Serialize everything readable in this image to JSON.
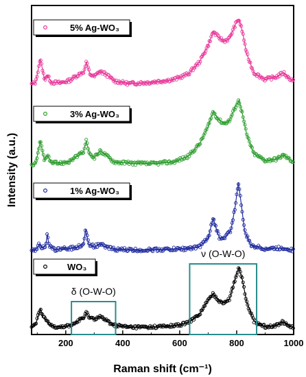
{
  "chart_data": {
    "type": "line",
    "xlabel": "Raman shift (cm⁻¹)",
    "ylabel": "Intensity (a.u.)",
    "xlim": [
      80,
      1000
    ],
    "xticks": [
      "200",
      "400",
      "600",
      "800",
      "1000"
    ],
    "grid": false,
    "legend_placement": "per-series box at top-left of each trace",
    "series": [
      {
        "name": "5% Ag-WO₃",
        "color": "#e8399a",
        "points": [
          [
            80,
            0.05
          ],
          [
            95,
            0.08
          ],
          [
            110,
            0.42
          ],
          [
            118,
            0.28
          ],
          [
            125,
            0.12
          ],
          [
            135,
            0.18
          ],
          [
            150,
            0.08
          ],
          [
            180,
            0.07
          ],
          [
            210,
            0.1
          ],
          [
            240,
            0.18
          ],
          [
            265,
            0.24
          ],
          [
            272,
            0.38
          ],
          [
            285,
            0.2
          ],
          [
            300,
            0.16
          ],
          [
            320,
            0.24
          ],
          [
            340,
            0.2
          ],
          [
            370,
            0.1
          ],
          [
            420,
            0.06
          ],
          [
            500,
            0.08
          ],
          [
            580,
            0.12
          ],
          [
            630,
            0.2
          ],
          [
            670,
            0.38
          ],
          [
            700,
            0.62
          ],
          [
            718,
            0.82
          ],
          [
            735,
            0.74
          ],
          [
            755,
            0.68
          ],
          [
            775,
            0.72
          ],
          [
            795,
            0.92
          ],
          [
            808,
            1.0
          ],
          [
            820,
            0.82
          ],
          [
            835,
            0.5
          ],
          [
            860,
            0.22
          ],
          [
            900,
            0.12
          ],
          [
            940,
            0.16
          ],
          [
            965,
            0.22
          ],
          [
            980,
            0.15
          ],
          [
            1000,
            0.1
          ]
        ]
      },
      {
        "name": "3% Ag-WO₃",
        "color": "#2e9e2e",
        "points": [
          [
            80,
            0.05
          ],
          [
            95,
            0.08
          ],
          [
            110,
            0.4
          ],
          [
            118,
            0.26
          ],
          [
            125,
            0.12
          ],
          [
            135,
            0.2
          ],
          [
            150,
            0.08
          ],
          [
            180,
            0.08
          ],
          [
            210,
            0.1
          ],
          [
            240,
            0.18
          ],
          [
            262,
            0.24
          ],
          [
            272,
            0.4
          ],
          [
            285,
            0.2
          ],
          [
            300,
            0.16
          ],
          [
            322,
            0.26
          ],
          [
            340,
            0.2
          ],
          [
            370,
            0.1
          ],
          [
            420,
            0.08
          ],
          [
            500,
            0.07
          ],
          [
            580,
            0.1
          ],
          [
            630,
            0.18
          ],
          [
            670,
            0.36
          ],
          [
            700,
            0.62
          ],
          [
            718,
            0.84
          ],
          [
            735,
            0.72
          ],
          [
            755,
            0.66
          ],
          [
            775,
            0.7
          ],
          [
            795,
            0.9
          ],
          [
            808,
            1.0
          ],
          [
            820,
            0.8
          ],
          [
            835,
            0.5
          ],
          [
            860,
            0.22
          ],
          [
            900,
            0.12
          ],
          [
            940,
            0.14
          ],
          [
            965,
            0.2
          ],
          [
            980,
            0.15
          ],
          [
            1000,
            0.1
          ]
        ]
      },
      {
        "name": "1% Ag-WO₃",
        "color": "#1f2a9e",
        "points": [
          [
            80,
            0.02
          ],
          [
            95,
            0.04
          ],
          [
            108,
            0.12
          ],
          [
            118,
            0.06
          ],
          [
            130,
            0.1
          ],
          [
            135,
            0.26
          ],
          [
            142,
            0.08
          ],
          [
            160,
            0.04
          ],
          [
            200,
            0.05
          ],
          [
            240,
            0.07
          ],
          [
            262,
            0.12
          ],
          [
            270,
            0.33
          ],
          [
            280,
            0.12
          ],
          [
            300,
            0.08
          ],
          [
            322,
            0.12
          ],
          [
            340,
            0.07
          ],
          [
            380,
            0.04
          ],
          [
            450,
            0.03
          ],
          [
            550,
            0.04
          ],
          [
            620,
            0.05
          ],
          [
            670,
            0.08
          ],
          [
            700,
            0.2
          ],
          [
            712,
            0.4
          ],
          [
            718,
            0.48
          ],
          [
            725,
            0.38
          ],
          [
            740,
            0.2
          ],
          [
            760,
            0.22
          ],
          [
            780,
            0.32
          ],
          [
            795,
            0.66
          ],
          [
            806,
            1.0
          ],
          [
            815,
            0.72
          ],
          [
            828,
            0.3
          ],
          [
            850,
            0.1
          ],
          [
            900,
            0.05
          ],
          [
            960,
            0.06
          ],
          [
            980,
            0.05
          ],
          [
            1000,
            0.03
          ]
        ]
      },
      {
        "name": "WO₃",
        "color": "#000000",
        "points": [
          [
            80,
            0.05
          ],
          [
            95,
            0.1
          ],
          [
            105,
            0.26
          ],
          [
            112,
            0.34
          ],
          [
            120,
            0.2
          ],
          [
            130,
            0.18
          ],
          [
            140,
            0.1
          ],
          [
            160,
            0.06
          ],
          [
            200,
            0.06
          ],
          [
            230,
            0.1
          ],
          [
            250,
            0.18
          ],
          [
            265,
            0.2
          ],
          [
            272,
            0.28
          ],
          [
            285,
            0.2
          ],
          [
            300,
            0.18
          ],
          [
            320,
            0.22
          ],
          [
            340,
            0.16
          ],
          [
            370,
            0.08
          ],
          [
            420,
            0.05
          ],
          [
            500,
            0.05
          ],
          [
            580,
            0.07
          ],
          [
            630,
            0.12
          ],
          [
            670,
            0.26
          ],
          [
            700,
            0.48
          ],
          [
            718,
            0.58
          ],
          [
            735,
            0.48
          ],
          [
            755,
            0.44
          ],
          [
            775,
            0.5
          ],
          [
            795,
            0.82
          ],
          [
            808,
            1.0
          ],
          [
            820,
            0.8
          ],
          [
            835,
            0.45
          ],
          [
            860,
            0.15
          ],
          [
            900,
            0.06
          ],
          [
            940,
            0.08
          ],
          [
            962,
            0.14
          ],
          [
            975,
            0.1
          ],
          [
            1000,
            0.04
          ]
        ]
      }
    ],
    "annotations": [
      {
        "label": "δ (O-W-O)",
        "x_range": [
          220,
          375
        ]
      },
      {
        "label": "ν (O-W-O)",
        "x_range": [
          635,
          870
        ]
      }
    ],
    "annotation_color": "#2a8c8c"
  }
}
